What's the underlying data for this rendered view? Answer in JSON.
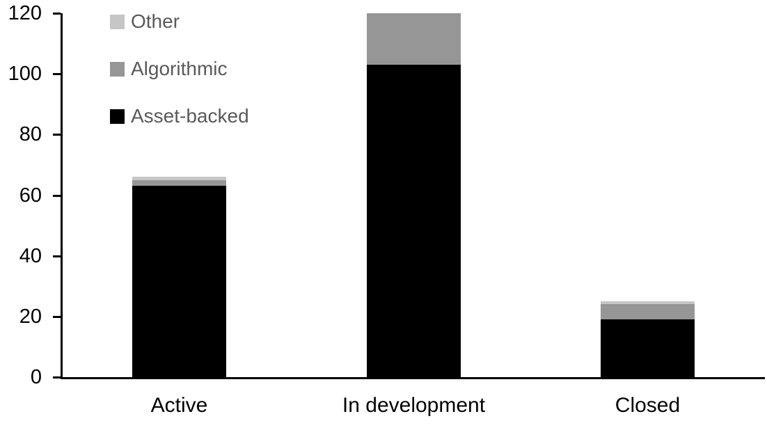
{
  "chart_data": {
    "type": "bar",
    "stacked": true,
    "title": "",
    "xlabel": "",
    "ylabel": "",
    "categories": [
      "Active",
      "In development",
      "Closed"
    ],
    "series": [
      {
        "name": "Asset-backed",
        "color": "#000000",
        "values": [
          63,
          103,
          19
        ]
      },
      {
        "name": "Algorithmic",
        "color": "#969696",
        "values": [
          2,
          17,
          5
        ]
      },
      {
        "name": "Other",
        "color": "#c6c6c6",
        "values": [
          1,
          0,
          1
        ]
      }
    ],
    "totals": [
      66,
      120,
      25
    ],
    "ylim": [
      0,
      120
    ],
    "yticks": [
      0,
      20,
      40,
      60,
      80,
      100,
      120
    ],
    "grid": false,
    "legend_position": "top-left",
    "legend_order": [
      "Other",
      "Algorithmic",
      "Asset-backed"
    ],
    "axis_color": "#000000",
    "tick_label_color": "#000000",
    "legend_text_color": "#595959"
  }
}
